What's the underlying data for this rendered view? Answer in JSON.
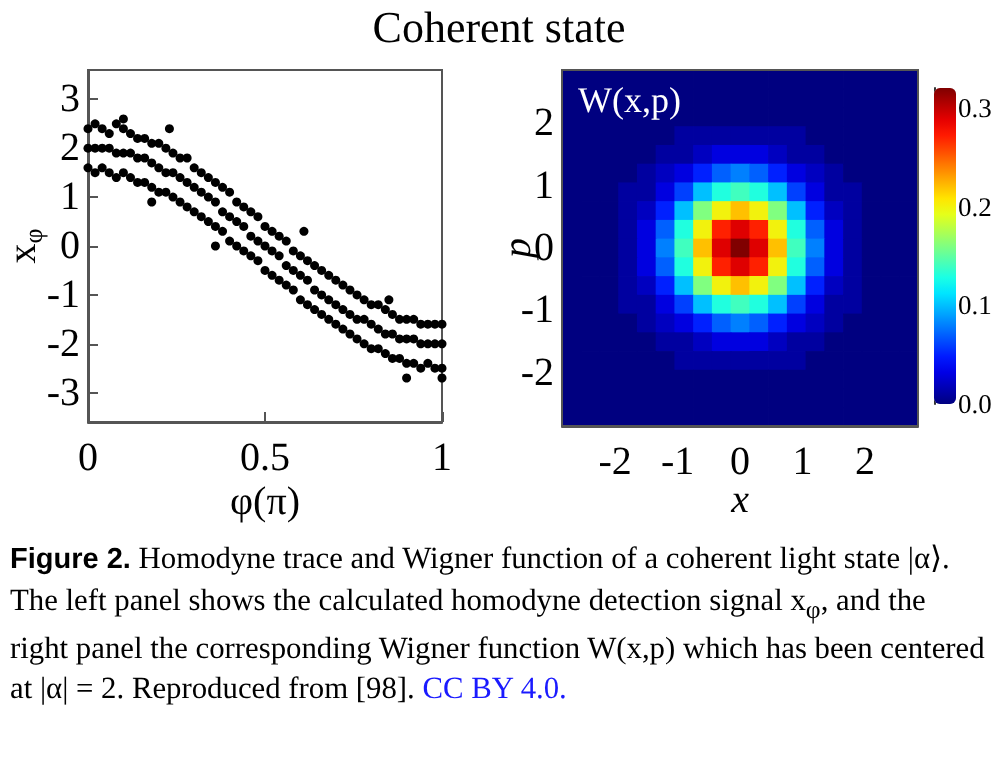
{
  "chart_data": [
    {
      "type": "scatter",
      "title": "Coherent state",
      "xlabel": "φ(π)",
      "ylabel": "x$_{φ}$",
      "annotations": [
        "Figure 2.",
        "Homodyne trace and Wigner function of a coherent light state |α⟩. The left panel shows the calculated homodyne detection signal x$_{φ}$, and the right panel the corresponding Wigner function W(x,p) which has been centered at |α| = 2. Reproduced from [98].",
        "CC BY 4.0."
      ],
      "x": [
        0,
        0.02,
        0.04,
        0.06,
        0.08,
        0.1,
        0.12,
        0.14,
        0.16,
        0.18,
        0.2,
        0.22,
        0.24,
        0.26,
        0.28,
        0.3,
        0.32,
        0.34,
        0.36,
        0.38,
        0.4,
        0.42,
        0.44,
        0.46,
        0.48,
        0.5,
        0.52,
        0.54,
        0.56,
        0.58,
        0.6,
        0.62,
        0.64,
        0.66,
        0.68,
        0.7,
        0.72,
        0.74,
        0.76,
        0.78,
        0.8,
        0.82,
        0.84,
        0.86,
        0.88,
        0.9,
        0.92,
        0.94,
        0.96,
        0.98,
        1,
        0,
        0.02,
        0.04,
        0.06,
        0.08,
        0.1,
        0.12,
        0.14,
        0.16,
        0.18,
        0.2,
        0.22,
        0.24,
        0.26,
        0.28,
        0.3,
        0.32,
        0.34,
        0.36,
        0.38,
        0.4,
        0.42,
        0.44,
        0.46,
        0.48,
        0.5,
        0.52,
        0.54,
        0.56,
        0.58,
        0.6,
        0.62,
        0.64,
        0.66,
        0.68,
        0.7,
        0.72,
        0.74,
        0.76,
        0.78,
        0.8,
        0.82,
        0.84,
        0.86,
        0.88,
        0.9,
        0.92,
        0.94,
        0.96,
        0.98,
        1,
        0,
        0.02,
        0.04,
        0.06,
        0.08,
        0.1,
        0.12,
        0.14,
        0.16,
        0.18,
        0.2,
        0.22,
        0.24,
        0.26,
        0.28,
        0.3,
        0.32,
        0.34,
        0.36,
        0.38,
        0.4,
        0.42,
        0.44,
        0.46,
        0.48,
        0.5,
        0.52,
        0.54,
        0.56,
        0.58,
        0.6,
        0.62,
        0.64,
        0.66,
        0.68,
        0.7,
        0.72,
        0.74,
        0.76,
        0.78,
        0.8,
        0.82,
        0.84,
        0.86,
        0.88,
        0.9,
        0.92,
        0.94,
        0.96,
        0.98,
        1,
        0.1,
        0.23,
        0.18,
        0.36,
        0.61,
        0.85,
        0.9,
        1
      ],
      "values": [
        2.4,
        2.5,
        2.4,
        2.3,
        2.5,
        2.4,
        2.3,
        2.2,
        2.2,
        2.1,
        2.1,
        2.0,
        1.9,
        1.8,
        1.8,
        1.6,
        1.5,
        1.4,
        1.3,
        1.2,
        1.1,
        0.9,
        0.8,
        0.7,
        0.6,
        0.4,
        0.3,
        0.2,
        0.1,
        -0.1,
        -0.2,
        -0.3,
        -0.4,
        -0.5,
        -0.6,
        -0.7,
        -0.8,
        -0.9,
        -1.0,
        -1.1,
        -1.2,
        -1.2,
        -1.3,
        -1.4,
        -1.5,
        -1.5,
        -1.5,
        -1.6,
        -1.6,
        -1.6,
        -1.6,
        2.0,
        2.0,
        2.0,
        2.0,
        1.9,
        1.9,
        1.9,
        1.8,
        1.8,
        1.7,
        1.6,
        1.5,
        1.5,
        1.4,
        1.3,
        1.2,
        1.1,
        1.0,
        0.9,
        0.7,
        0.6,
        0.5,
        0.4,
        0.2,
        0.1,
        0.0,
        -0.1,
        -0.2,
        -0.4,
        -0.5,
        -0.6,
        -0.7,
        -0.9,
        -1.0,
        -1.1,
        -1.2,
        -1.3,
        -1.4,
        -1.5,
        -1.5,
        -1.6,
        -1.7,
        -1.8,
        -1.8,
        -1.9,
        -1.9,
        -1.9,
        -2.0,
        -2.0,
        -2.0,
        -2.0,
        1.6,
        1.5,
        1.6,
        1.5,
        1.4,
        1.5,
        1.4,
        1.3,
        1.3,
        1.2,
        1.1,
        1.1,
        1.0,
        0.9,
        0.8,
        0.7,
        0.6,
        0.5,
        0.4,
        0.3,
        0.1,
        0.0,
        -0.1,
        -0.2,
        -0.3,
        -0.5,
        -0.6,
        -0.7,
        -0.8,
        -0.9,
        -1.1,
        -1.2,
        -1.3,
        -1.4,
        -1.5,
        -1.6,
        -1.7,
        -1.8,
        -1.9,
        -2.0,
        -2.1,
        -2.1,
        -2.2,
        -2.3,
        -2.3,
        -2.4,
        -2.4,
        -2.5,
        -2.4,
        -2.5,
        -2.5,
        2.6,
        2.4,
        0.9,
        0.0,
        0.3,
        -1.1,
        -2.7,
        -2.7
      ],
      "color": "#000000",
      "marker": "circle",
      "xlim": [
        0,
        1
      ],
      "xticks": [
        0,
        0.5,
        1
      ],
      "ylim": [
        -3.6,
        3.6
      ],
      "yticks": [
        -3,
        -2,
        -1,
        0,
        1,
        2,
        3
      ]
    },
    {
      "type": "heatmap",
      "title": "W(x,p)",
      "xlabel": "x",
      "ylabel": "p",
      "x": [
        -2.7,
        -2.4,
        -2.1,
        -1.8,
        -1.5,
        -1.2,
        -0.9,
        -0.6,
        -0.3,
        0,
        0.3,
        0.6,
        0.9,
        1.2,
        1.5,
        1.8,
        2.1,
        2.4,
        2.7
      ],
      "xlim": [
        -2.85,
        2.85
      ],
      "xticks": [
        -2,
        -1,
        0,
        1,
        2
      ],
      "ylim": [
        -2.85,
        2.85
      ],
      "yticks": [
        -2,
        -1,
        0,
        1,
        2
      ],
      "clim": [
        0,
        0.32
      ],
      "cticks": [
        {
          "value": 0,
          "label": "0.0"
        },
        0.1,
        0.2,
        0.3
      ],
      "cells": [
        [
          0,
          0,
          0,
          0,
          0,
          0,
          0,
          0,
          0,
          0,
          0,
          0,
          0,
          0,
          0,
          0,
          0,
          0,
          0
        ],
        [
          0,
          0,
          0,
          0,
          0,
          0,
          0,
          0,
          0,
          0,
          0,
          0,
          0,
          0,
          0,
          0,
          0,
          0,
          0
        ],
        [
          0,
          0,
          0,
          0,
          0,
          0,
          0,
          0,
          0,
          0,
          0,
          0,
          0,
          0,
          0,
          0,
          0,
          0,
          0
        ],
        [
          0,
          0,
          0,
          0,
          0,
          0,
          0.01,
          0.01,
          0.01,
          0.01,
          0.01,
          0.01,
          0.01,
          0,
          0,
          0,
          0,
          0,
          0
        ],
        [
          0,
          0,
          0,
          0,
          0,
          0.01,
          0.01,
          0.02,
          0.03,
          0.03,
          0.03,
          0.02,
          0.01,
          0.01,
          0,
          0,
          0,
          0,
          0
        ],
        [
          0,
          0,
          0,
          0,
          0.01,
          0.02,
          0.03,
          0.05,
          0.07,
          0.08,
          0.07,
          0.05,
          0.03,
          0.02,
          0.01,
          0,
          0,
          0,
          0
        ],
        [
          0,
          0,
          0,
          0.01,
          0.01,
          0.03,
          0.06,
          0.1,
          0.13,
          0.14,
          0.13,
          0.1,
          0.06,
          0.03,
          0.01,
          0.01,
          0,
          0,
          0
        ],
        [
          0,
          0,
          0,
          0.01,
          0.02,
          0.05,
          0.1,
          0.16,
          0.2,
          0.22,
          0.2,
          0.16,
          0.1,
          0.05,
          0.02,
          0.01,
          0,
          0,
          0
        ],
        [
          0,
          0,
          0,
          0.01,
          0.03,
          0.07,
          0.13,
          0.2,
          0.27,
          0.29,
          0.27,
          0.2,
          0.13,
          0.07,
          0.03,
          0.01,
          0,
          0,
          0
        ],
        [
          0,
          0,
          0,
          0.01,
          0.03,
          0.08,
          0.14,
          0.22,
          0.29,
          0.32,
          0.29,
          0.22,
          0.14,
          0.08,
          0.03,
          0.01,
          0,
          0,
          0
        ],
        [
          0,
          0,
          0,
          0.01,
          0.03,
          0.07,
          0.13,
          0.2,
          0.27,
          0.29,
          0.27,
          0.2,
          0.13,
          0.07,
          0.03,
          0.01,
          0,
          0,
          0
        ],
        [
          0,
          0,
          0,
          0.01,
          0.02,
          0.05,
          0.1,
          0.16,
          0.2,
          0.22,
          0.2,
          0.16,
          0.1,
          0.05,
          0.02,
          0.01,
          0,
          0,
          0
        ],
        [
          0,
          0,
          0,
          0.01,
          0.01,
          0.03,
          0.06,
          0.1,
          0.13,
          0.14,
          0.13,
          0.1,
          0.06,
          0.03,
          0.01,
          0.01,
          0,
          0,
          0
        ],
        [
          0,
          0,
          0,
          0,
          0.01,
          0.02,
          0.03,
          0.05,
          0.07,
          0.08,
          0.07,
          0.05,
          0.03,
          0.02,
          0.01,
          0,
          0,
          0,
          0
        ],
        [
          0,
          0,
          0,
          0,
          0,
          0.01,
          0.01,
          0.02,
          0.03,
          0.03,
          0.03,
          0.02,
          0.01,
          0.01,
          0,
          0,
          0,
          0,
          0
        ],
        [
          0,
          0,
          0,
          0,
          0,
          0,
          0.01,
          0.01,
          0.01,
          0.01,
          0.01,
          0.01,
          0.01,
          0,
          0,
          0,
          0,
          0,
          0
        ],
        [
          0,
          0,
          0,
          0,
          0,
          0,
          0,
          0,
          0,
          0,
          0,
          0,
          0,
          0,
          0,
          0,
          0,
          0,
          0
        ],
        [
          0,
          0,
          0,
          0,
          0,
          0,
          0,
          0,
          0,
          0,
          0,
          0,
          0,
          0,
          0,
          0,
          0,
          0,
          0
        ],
        [
          0,
          0,
          0,
          0,
          0,
          0,
          0,
          0,
          0,
          0,
          0,
          0,
          0,
          0,
          0,
          0,
          0,
          0,
          0
        ]
      ]
    }
  ]
}
